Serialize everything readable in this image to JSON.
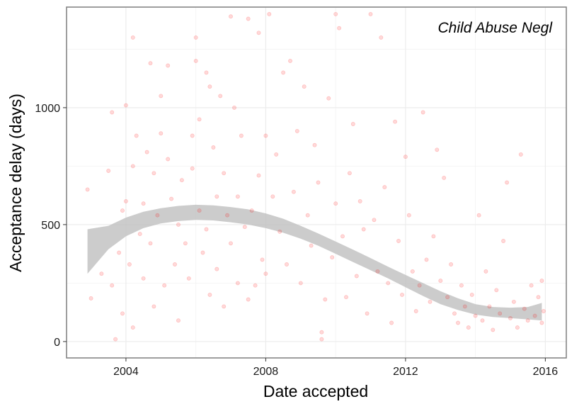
{
  "chart_data": {
    "type": "scatter",
    "title": "",
    "annotation": "Child Abuse Negl",
    "xlabel": "Date accepted",
    "ylabel": "Acceptance delay (days)",
    "x_unit": "year (decimal)",
    "xlim": [
      2002.3,
      2016.6
    ],
    "ylim": [
      -70,
      1430
    ],
    "x_ticks": [
      2004,
      2008,
      2012,
      2016
    ],
    "x_tick_labels": [
      "2004",
      "2008",
      "2012",
      "2016"
    ],
    "y_ticks": [
      0,
      500,
      1000
    ],
    "y_tick_labels": [
      "0",
      "500",
      "1000"
    ],
    "grid": true,
    "point_color": "#ff0000",
    "point_opacity": 0.15,
    "band_color": "#bfbfbf",
    "smooth_band": {
      "x": [
        2002.9,
        2003.5,
        2004.0,
        2004.5,
        2005.0,
        2005.5,
        2006.0,
        2006.5,
        2007.0,
        2007.5,
        2008.0,
        2008.5,
        2009.0,
        2009.5,
        2010.0,
        2010.5,
        2011.0,
        2011.5,
        2012.0,
        2012.5,
        2013.0,
        2013.5,
        2014.0,
        2014.5,
        2015.0,
        2015.5,
        2015.9
      ],
      "lower": [
        290,
        395,
        450,
        485,
        505,
        515,
        520,
        518,
        510,
        500,
        485,
        465,
        440,
        410,
        375,
        340,
        305,
        270,
        232,
        195,
        160,
        135,
        115,
        105,
        100,
        95,
        90
      ],
      "upper": [
        480,
        495,
        530,
        555,
        570,
        580,
        585,
        582,
        575,
        565,
        548,
        525,
        495,
        462,
        428,
        393,
        357,
        320,
        285,
        250,
        215,
        185,
        160,
        148,
        145,
        148,
        165
      ]
    },
    "points": [
      [
        2002.9,
        650
      ],
      [
        2003.0,
        185
      ],
      [
        2003.3,
        290
      ],
      [
        2003.5,
        730
      ],
      [
        2003.6,
        240
      ],
      [
        2003.6,
        980
      ],
      [
        2003.7,
        10
      ],
      [
        2003.8,
        380
      ],
      [
        2003.9,
        560
      ],
      [
        2003.9,
        120
      ],
      [
        2004.0,
        1010
      ],
      [
        2004.0,
        600
      ],
      [
        2004.1,
        330
      ],
      [
        2004.2,
        1300
      ],
      [
        2004.2,
        750
      ],
      [
        2004.2,
        60
      ],
      [
        2004.3,
        880
      ],
      [
        2004.4,
        460
      ],
      [
        2004.5,
        590
      ],
      [
        2004.5,
        270
      ],
      [
        2004.6,
        810
      ],
      [
        2004.7,
        1190
      ],
      [
        2004.7,
        420
      ],
      [
        2004.8,
        720
      ],
      [
        2004.8,
        150
      ],
      [
        2004.9,
        540
      ],
      [
        2005.0,
        1050
      ],
      [
        2005.0,
        890
      ],
      [
        2005.1,
        240
      ],
      [
        2005.2,
        1180
      ],
      [
        2005.2,
        780
      ],
      [
        2005.3,
        610
      ],
      [
        2005.4,
        330
      ],
      [
        2005.5,
        500
      ],
      [
        2005.5,
        90
      ],
      [
        2005.6,
        690
      ],
      [
        2005.7,
        420
      ],
      [
        2005.8,
        270
      ],
      [
        2005.9,
        880
      ],
      [
        2005.9,
        740
      ],
      [
        2006.0,
        1300
      ],
      [
        2006.0,
        1200
      ],
      [
        2006.1,
        560
      ],
      [
        2006.1,
        950
      ],
      [
        2006.2,
        380
      ],
      [
        2006.3,
        1150
      ],
      [
        2006.3,
        480
      ],
      [
        2006.4,
        1090
      ],
      [
        2006.4,
        200
      ],
      [
        2006.5,
        830
      ],
      [
        2006.6,
        620
      ],
      [
        2006.6,
        310
      ],
      [
        2006.7,
        1050
      ],
      [
        2006.8,
        720
      ],
      [
        2006.8,
        150
      ],
      [
        2006.9,
        540
      ],
      [
        2007.0,
        1390
      ],
      [
        2007.0,
        420
      ],
      [
        2007.1,
        1000
      ],
      [
        2007.2,
        620
      ],
      [
        2007.2,
        250
      ],
      [
        2007.3,
        880
      ],
      [
        2007.4,
        490
      ],
      [
        2007.5,
        180
      ],
      [
        2007.5,
        1380
      ],
      [
        2007.6,
        560
      ],
      [
        2007.7,
        240
      ],
      [
        2007.8,
        1320
      ],
      [
        2007.8,
        710
      ],
      [
        2007.9,
        350
      ],
      [
        2008.0,
        880
      ],
      [
        2008.0,
        290
      ],
      [
        2008.1,
        1400
      ],
      [
        2008.2,
        620
      ],
      [
        2008.3,
        800
      ],
      [
        2008.4,
        470
      ],
      [
        2008.5,
        1150
      ],
      [
        2008.6,
        330
      ],
      [
        2008.7,
        1200
      ],
      [
        2008.8,
        640
      ],
      [
        2008.9,
        900
      ],
      [
        2009.0,
        250
      ],
      [
        2009.1,
        1090
      ],
      [
        2009.2,
        540
      ],
      [
        2009.3,
        410
      ],
      [
        2009.4,
        840
      ],
      [
        2009.5,
        680
      ],
      [
        2009.6,
        40
      ],
      [
        2009.6,
        10
      ],
      [
        2009.7,
        180
      ],
      [
        2009.8,
        1040
      ],
      [
        2009.9,
        360
      ],
      [
        2010.0,
        1400
      ],
      [
        2010.0,
        590
      ],
      [
        2010.1,
        1340
      ],
      [
        2010.2,
        450
      ],
      [
        2010.3,
        190
      ],
      [
        2010.4,
        720
      ],
      [
        2010.5,
        930
      ],
      [
        2010.6,
        280
      ],
      [
        2010.7,
        600
      ],
      [
        2010.8,
        480
      ],
      [
        2010.9,
        120
      ],
      [
        2011.0,
        1400
      ],
      [
        2011.1,
        520
      ],
      [
        2011.2,
        300
      ],
      [
        2011.3,
        1300
      ],
      [
        2011.4,
        660
      ],
      [
        2011.5,
        250
      ],
      [
        2011.6,
        80
      ],
      [
        2011.7,
        940
      ],
      [
        2011.8,
        430
      ],
      [
        2011.9,
        200
      ],
      [
        2012.0,
        790
      ],
      [
        2012.1,
        540
      ],
      [
        2012.2,
        300
      ],
      [
        2012.3,
        130
      ],
      [
        2012.4,
        240
      ],
      [
        2012.5,
        980
      ],
      [
        2012.6,
        350
      ],
      [
        2012.7,
        170
      ],
      [
        2012.8,
        450
      ],
      [
        2012.9,
        820
      ],
      [
        2013.0,
        260
      ],
      [
        2013.1,
        700
      ],
      [
        2013.2,
        190
      ],
      [
        2013.3,
        330
      ],
      [
        2013.4,
        120
      ],
      [
        2013.5,
        80
      ],
      [
        2013.6,
        240
      ],
      [
        2013.7,
        150
      ],
      [
        2013.8,
        60
      ],
      [
        2013.9,
        200
      ],
      [
        2014.0,
        110
      ],
      [
        2014.1,
        540
      ],
      [
        2014.2,
        90
      ],
      [
        2014.3,
        300
      ],
      [
        2014.4,
        150
      ],
      [
        2014.5,
        50
      ],
      [
        2014.6,
        220
      ],
      [
        2014.7,
        120
      ],
      [
        2014.8,
        430
      ],
      [
        2014.9,
        680
      ],
      [
        2015.0,
        100
      ],
      [
        2015.1,
        170
      ],
      [
        2015.2,
        60
      ],
      [
        2015.3,
        800
      ],
      [
        2015.4,
        140
      ],
      [
        2015.5,
        90
      ],
      [
        2015.6,
        240
      ],
      [
        2015.7,
        110
      ],
      [
        2015.8,
        190
      ],
      [
        2015.9,
        80
      ],
      [
        2015.9,
        260
      ],
      [
        2015.95,
        130
      ]
    ]
  }
}
